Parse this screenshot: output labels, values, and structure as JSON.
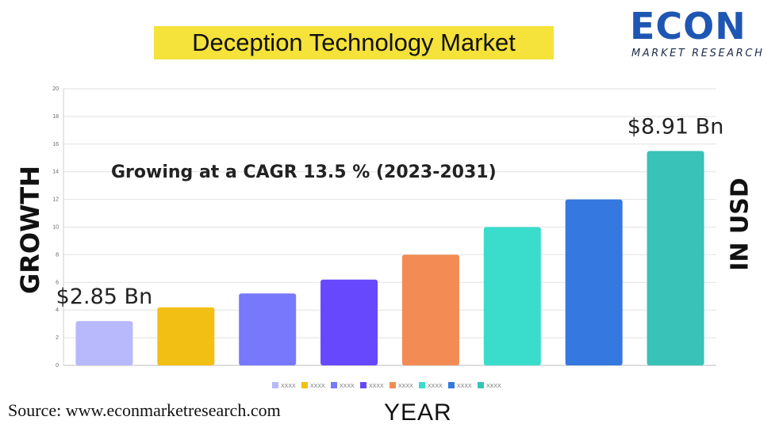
{
  "title": "Deception Technology Market",
  "logo": {
    "name": "ECON",
    "tagline": "MARKET RESEARCH"
  },
  "axis_left_label": "GROWTH",
  "axis_right_label": "IN USD",
  "x_axis_label": "YEAR",
  "source": "Source: www.econmarketresearch.com",
  "colors": {
    "title_highlight": "#f5e23a",
    "logo_blue": "#1e56b3"
  },
  "chart_data": {
    "type": "bar",
    "title": "Deception Technology Market",
    "subtitle": "Growing at a CAGR 13.5 % (2023-2031)",
    "xlabel": "YEAR",
    "ylabel": "GROWTH",
    "ylim": [
      0,
      20
    ],
    "yticks": [
      0,
      2,
      4,
      6,
      8,
      10,
      12,
      14,
      16,
      18,
      20
    ],
    "grid": true,
    "legend_position": "bottom",
    "categories": [
      "XXXX",
      "XXXX",
      "XXXX",
      "XXXX",
      "XXXX",
      "XXXX",
      "XXXX",
      "XXXX"
    ],
    "values": [
      3.2,
      4.2,
      5.2,
      6.2,
      8.0,
      10.0,
      12.0,
      15.5
    ],
    "colors": [
      "#b8b8fc",
      "#f2c014",
      "#7878fc",
      "#6848fc",
      "#f28c54",
      "#3adccc",
      "#3478e0",
      "#38c2b8"
    ],
    "annotations": [
      {
        "text": "$2.85 Bn",
        "bar_index": 0
      },
      {
        "text": "$8.91 Bn",
        "bar_index": 7
      }
    ]
  }
}
